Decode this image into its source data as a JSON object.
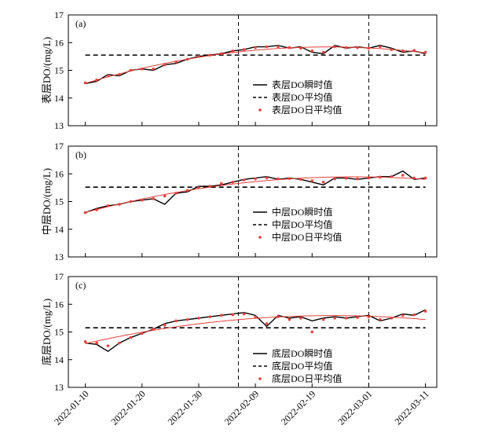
{
  "chart_data": [
    {
      "type": "line",
      "panel_label": "(a)",
      "ylabel": "表层DO/(mg/L)",
      "ylim": [
        13,
        17
      ],
      "yticks": [
        13,
        14,
        15,
        16,
        17
      ],
      "xlim": [
        "2022-01-07",
        "2022-03-13"
      ],
      "mean_value": 15.55,
      "series": [
        {
          "name": "表层DO瞬时值",
          "style": "solid",
          "color": "#000000",
          "x": [
            "2022-01-10",
            "2022-01-12",
            "2022-01-14",
            "2022-01-16",
            "2022-01-18",
            "2022-01-20",
            "2022-01-22",
            "2022-01-24",
            "2022-01-26",
            "2022-01-28",
            "2022-01-30",
            "2022-02-01",
            "2022-02-03",
            "2022-02-05",
            "2022-02-07",
            "2022-02-09",
            "2022-02-11",
            "2022-02-13",
            "2022-02-15",
            "2022-02-17",
            "2022-02-19",
            "2022-02-21",
            "2022-02-23",
            "2022-02-25",
            "2022-02-27",
            "2022-03-01",
            "2022-03-03",
            "2022-03-05",
            "2022-03-07",
            "2022-03-09",
            "2022-03-11"
          ],
          "values": [
            14.52,
            14.6,
            14.85,
            14.8,
            15.0,
            15.05,
            15.0,
            15.2,
            15.25,
            15.4,
            15.5,
            15.55,
            15.6,
            15.7,
            15.75,
            15.85,
            15.85,
            15.9,
            15.8,
            15.85,
            15.65,
            15.6,
            15.9,
            15.8,
            15.85,
            15.8,
            15.9,
            15.8,
            15.65,
            15.7,
            15.6
          ]
        },
        {
          "name": "表层DO平均值",
          "style": "dashed",
          "color": "#000000",
          "x": [
            "2022-01-10",
            "2022-03-11"
          ],
          "values": [
            15.55,
            15.55
          ]
        },
        {
          "name": "表层DO日平均值",
          "style": "dots",
          "color": "#e8413c",
          "x": [
            "2022-01-10",
            "2022-01-12",
            "2022-01-14",
            "2022-01-16",
            "2022-01-18",
            "2022-01-20",
            "2022-01-22",
            "2022-01-24",
            "2022-01-26",
            "2022-01-28",
            "2022-01-30",
            "2022-02-01",
            "2022-02-03",
            "2022-02-05",
            "2022-02-07",
            "2022-02-09",
            "2022-02-11",
            "2022-02-13",
            "2022-02-15",
            "2022-02-17",
            "2022-02-19",
            "2022-02-21",
            "2022-02-23",
            "2022-02-25",
            "2022-02-27",
            "2022-03-01",
            "2022-03-03",
            "2022-03-05",
            "2022-03-07",
            "2022-03-09",
            "2022-03-11"
          ],
          "values": [
            14.55,
            14.65,
            14.8,
            14.85,
            15.0,
            15.05,
            15.05,
            15.2,
            15.3,
            15.4,
            15.5,
            15.55,
            15.6,
            15.7,
            15.75,
            15.82,
            15.85,
            15.85,
            15.82,
            15.8,
            15.7,
            15.65,
            15.85,
            15.82,
            15.82,
            15.8,
            15.85,
            15.75,
            15.7,
            15.72,
            15.65
          ]
        }
      ]
    },
    {
      "type": "line",
      "panel_label": "(b)",
      "ylabel": "中层DO/(mg/L)",
      "ylim": [
        13,
        17
      ],
      "yticks": [
        13,
        14,
        15,
        16,
        17
      ],
      "xlim": [
        "2022-01-07",
        "2022-03-13"
      ],
      "mean_value": 15.52,
      "series": [
        {
          "name": "中层DO瞬时值",
          "style": "solid",
          "color": "#000000",
          "x": [
            "2022-01-10",
            "2022-01-12",
            "2022-01-14",
            "2022-01-16",
            "2022-01-18",
            "2022-01-20",
            "2022-01-22",
            "2022-01-24",
            "2022-01-26",
            "2022-01-28",
            "2022-01-30",
            "2022-02-01",
            "2022-02-03",
            "2022-02-05",
            "2022-02-07",
            "2022-02-09",
            "2022-02-11",
            "2022-02-13",
            "2022-02-15",
            "2022-02-17",
            "2022-02-19",
            "2022-02-21",
            "2022-02-23",
            "2022-02-25",
            "2022-02-27",
            "2022-03-01",
            "2022-03-03",
            "2022-03-05",
            "2022-03-07",
            "2022-03-09",
            "2022-03-11"
          ],
          "values": [
            14.6,
            14.75,
            14.85,
            14.9,
            15.0,
            15.05,
            15.1,
            14.9,
            15.3,
            15.35,
            15.55,
            15.55,
            15.6,
            15.7,
            15.8,
            15.85,
            15.9,
            15.8,
            15.85,
            15.8,
            15.7,
            15.6,
            15.85,
            15.85,
            15.8,
            15.85,
            15.9,
            15.9,
            16.1,
            15.8,
            15.85
          ]
        },
        {
          "name": "中层DO平均值",
          "style": "dashed",
          "color": "#000000",
          "x": [
            "2022-01-10",
            "2022-03-11"
          ],
          "values": [
            15.52,
            15.52
          ]
        },
        {
          "name": "中层DO日平均值",
          "style": "dots",
          "color": "#e8413c",
          "x": [
            "2022-01-10",
            "2022-01-12",
            "2022-01-14",
            "2022-01-16",
            "2022-01-18",
            "2022-01-20",
            "2022-01-22",
            "2022-01-24",
            "2022-01-26",
            "2022-01-28",
            "2022-01-30",
            "2022-02-01",
            "2022-02-03",
            "2022-02-05",
            "2022-02-07",
            "2022-02-09",
            "2022-02-11",
            "2022-02-13",
            "2022-02-15",
            "2022-02-17",
            "2022-02-19",
            "2022-02-21",
            "2022-02-23",
            "2022-02-25",
            "2022-02-27",
            "2022-03-01",
            "2022-03-03",
            "2022-03-05",
            "2022-03-07",
            "2022-03-09",
            "2022-03-11"
          ],
          "values": [
            14.6,
            14.7,
            14.85,
            14.9,
            15.0,
            15.05,
            15.1,
            15.2,
            15.3,
            15.4,
            15.5,
            15.55,
            15.65,
            15.7,
            15.78,
            15.82,
            15.85,
            15.82,
            15.83,
            15.8,
            15.75,
            15.7,
            15.82,
            15.84,
            15.82,
            15.85,
            15.88,
            15.9,
            15.95,
            15.85,
            15.85
          ]
        }
      ]
    },
    {
      "type": "line",
      "panel_label": "(c)",
      "ylabel": "底层DO/(mg/L)",
      "ylim": [
        13,
        17
      ],
      "yticks": [
        13,
        14,
        15,
        16,
        17
      ],
      "xlim": [
        "2022-01-07",
        "2022-03-13"
      ],
      "mean_value": 15.15,
      "xticks": [
        "2022-01-10",
        "2022-01-20",
        "2022-01-30",
        "2022-02-09",
        "2022-02-19",
        "2022-03-01",
        "2022-03-11"
      ],
      "series": [
        {
          "name": "底层DO瞬时值",
          "style": "solid",
          "color": "#000000",
          "x": [
            "2022-01-10",
            "2022-01-12",
            "2022-01-14",
            "2022-01-16",
            "2022-01-18",
            "2022-01-20",
            "2022-01-22",
            "2022-01-24",
            "2022-01-26",
            "2022-01-28",
            "2022-01-30",
            "2022-02-01",
            "2022-02-03",
            "2022-02-05",
            "2022-02-07",
            "2022-02-09",
            "2022-02-11",
            "2022-02-13",
            "2022-02-15",
            "2022-02-17",
            "2022-02-19",
            "2022-02-21",
            "2022-02-23",
            "2022-02-25",
            "2022-02-27",
            "2022-03-01",
            "2022-03-03",
            "2022-03-05",
            "2022-03-07",
            "2022-03-09",
            "2022-03-11"
          ],
          "values": [
            14.6,
            14.55,
            14.3,
            14.6,
            14.8,
            14.95,
            15.1,
            15.3,
            15.4,
            15.45,
            15.5,
            15.55,
            15.6,
            15.65,
            15.7,
            15.6,
            15.2,
            15.6,
            15.5,
            15.55,
            15.4,
            15.5,
            15.55,
            15.5,
            15.55,
            15.6,
            15.4,
            15.5,
            15.65,
            15.6,
            15.8
          ]
        },
        {
          "name": "底层DO平均值",
          "style": "dashed",
          "color": "#000000",
          "x": [
            "2022-01-10",
            "2022-03-11"
          ],
          "values": [
            15.15,
            15.15
          ]
        },
        {
          "name": "底层DO日平均值",
          "style": "dots",
          "color": "#e8413c",
          "x": [
            "2022-01-10",
            "2022-01-12",
            "2022-01-14",
            "2022-01-16",
            "2022-01-18",
            "2022-01-20",
            "2022-01-22",
            "2022-01-24",
            "2022-01-26",
            "2022-01-28",
            "2022-01-30",
            "2022-02-01",
            "2022-02-03",
            "2022-02-05",
            "2022-02-07",
            "2022-02-09",
            "2022-02-11",
            "2022-02-13",
            "2022-02-15",
            "2022-02-17",
            "2022-02-19",
            "2022-02-21",
            "2022-02-23",
            "2022-02-25",
            "2022-02-27",
            "2022-03-01",
            "2022-03-03",
            "2022-03-05",
            "2022-03-07",
            "2022-03-09",
            "2022-03-11"
          ],
          "values": [
            14.65,
            14.6,
            14.5,
            14.6,
            14.8,
            14.95,
            15.1,
            15.25,
            15.4,
            15.45,
            15.5,
            15.55,
            15.6,
            15.62,
            15.65,
            15.55,
            15.3,
            15.55,
            15.45,
            15.5,
            15.0,
            15.45,
            15.5,
            15.5,
            15.52,
            15.55,
            15.45,
            15.5,
            15.6,
            15.62,
            15.75
          ]
        }
      ]
    }
  ],
  "vertical_markers": [
    "2022-02-06",
    "2022-03-01"
  ],
  "colors": {
    "instant": "#000000",
    "mean": "#000000",
    "daily_mean": "#e8413c",
    "fit": "#e8413c"
  }
}
